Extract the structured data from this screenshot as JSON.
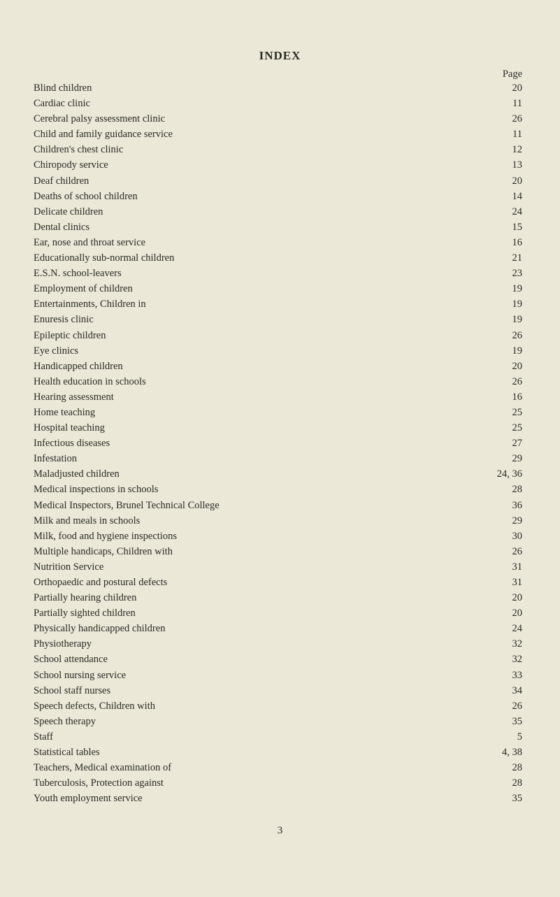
{
  "title": "INDEX",
  "pageLabel": "Page",
  "entries": [
    {
      "label": "Blind children",
      "page": "20"
    },
    {
      "label": "Cardiac clinic",
      "page": "11"
    },
    {
      "label": "Cerebral palsy assessment clinic",
      "page": "26"
    },
    {
      "label": "Child and family guidance service",
      "page": "11"
    },
    {
      "label": "Children's chest clinic",
      "page": "12"
    },
    {
      "label": "Chiropody service",
      "page": "13"
    },
    {
      "label": "Deaf children",
      "page": "20"
    },
    {
      "label": "Deaths of school children",
      "page": "14"
    },
    {
      "label": "Delicate children",
      "page": "24"
    },
    {
      "label": "Dental clinics",
      "page": "15"
    },
    {
      "label": "Ear, nose and throat service",
      "page": "16"
    },
    {
      "label": "Educationally sub-normal children",
      "page": "21"
    },
    {
      "label": "E.S.N. school-leavers",
      "page": "23"
    },
    {
      "label": "Employment of children",
      "page": "19"
    },
    {
      "label": "Entertainments, Children in",
      "page": "19"
    },
    {
      "label": "Enuresis clinic",
      "page": "19"
    },
    {
      "label": "Epileptic children",
      "page": "26"
    },
    {
      "label": "Eye clinics",
      "page": "19"
    },
    {
      "label": "Handicapped children",
      "page": "20"
    },
    {
      "label": "Health education in schools",
      "page": "26"
    },
    {
      "label": "Hearing assessment",
      "page": "16"
    },
    {
      "label": "Home teaching",
      "page": "25"
    },
    {
      "label": "Hospital teaching",
      "page": "25"
    },
    {
      "label": "Infectious diseases",
      "page": "27"
    },
    {
      "label": "Infestation",
      "page": "29"
    },
    {
      "label": "Maladjusted children",
      "page": "24, 36"
    },
    {
      "label": "Medical inspections in schools",
      "page": "28"
    },
    {
      "label": "Medical Inspectors, Brunel Technical College",
      "page": "36"
    },
    {
      "label": "Milk and meals in schools",
      "page": "29"
    },
    {
      "label": "Milk, food and hygiene inspections",
      "page": "30"
    },
    {
      "label": "Multiple handicaps, Children with",
      "page": "26"
    },
    {
      "label": "Nutrition Service",
      "page": "31"
    },
    {
      "label": "Orthopaedic and postural defects",
      "page": "31"
    },
    {
      "label": "Partially hearing children",
      "page": "20"
    },
    {
      "label": "Partially sighted children",
      "page": "20"
    },
    {
      "label": "Physically handicapped children",
      "page": "24"
    },
    {
      "label": "Physiotherapy",
      "page": "32"
    },
    {
      "label": "School attendance",
      "page": "32"
    },
    {
      "label": "School nursing service",
      "page": "33"
    },
    {
      "label": "School staff nurses",
      "page": "34"
    },
    {
      "label": "Speech defects, Children with",
      "page": "26"
    },
    {
      "label": "Speech therapy",
      "page": "35"
    },
    {
      "label": "Staff",
      "page": "5"
    },
    {
      "label": "Statistical tables",
      "page": "4, 38"
    },
    {
      "label": "Teachers, Medical examination of",
      "page": "28"
    },
    {
      "label": "Tuberculosis, Protection against",
      "page": "28"
    },
    {
      "label": "Youth employment service",
      "page": "35"
    }
  ],
  "footerPage": "3",
  "colors": {
    "background": "#ebe8d8",
    "text": "#2a2a24"
  },
  "fontSize": 14.5
}
